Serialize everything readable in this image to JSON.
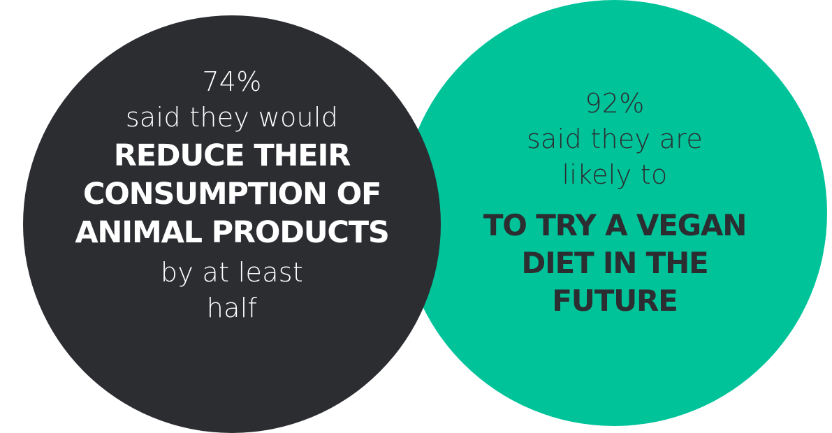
{
  "colors": {
    "background": "#ffffff",
    "dark_circle": "#2b2d30",
    "green_circle": "#00c39a",
    "dark_text": "#2b2d30",
    "light_text": "#ffffff"
  },
  "left": {
    "percent": "74%",
    "intro": "said they would",
    "emphasis_lines": [
      "REDUCE THEIR",
      "CONSUMPTION OF",
      "ANIMAL PRODUCTS"
    ],
    "outro_lines": [
      "by at least",
      "half"
    ]
  },
  "right": {
    "percent": "92%",
    "intro_lines": [
      "said they are",
      "likely to"
    ],
    "emphasis_lines": [
      "TO TRY A VEGAN",
      "DIET IN THE",
      "FUTURE"
    ]
  }
}
